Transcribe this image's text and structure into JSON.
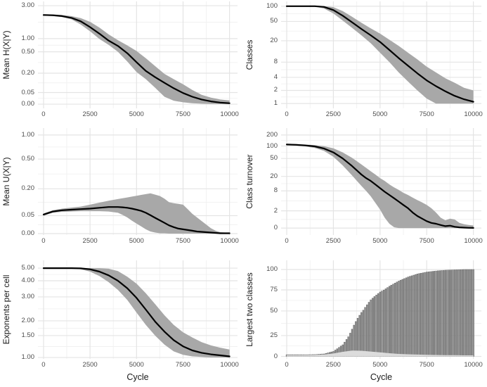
{
  "figure": {
    "background": "#ffffff",
    "grid_rows": 3,
    "grid_cols": 2
  },
  "colors": {
    "ribbon": "#a8a8a8",
    "line": "#000000",
    "grid_major": "#e4e4e4",
    "grid_minor": "#f1f1f1",
    "bar_fill": "#8f8f8f",
    "bar_stroke": "#656565",
    "second_area": "#dcdcdc",
    "tick_text": "#4d4d4d",
    "axis_title": "#1a1a1a"
  },
  "axes": {
    "x": {
      "label": "Cycle",
      "range": [
        0,
        10000
      ],
      "tick_values": [
        0,
        2500,
        5000,
        7500,
        10000
      ],
      "tick_labels": [
        "0",
        "2500",
        "5000",
        "7500",
        "10000"
      ],
      "minor_ticks": [
        1250,
        3750,
        6250,
        8750
      ],
      "frac_start": 0.028,
      "frac_end": 0.96
    }
  },
  "chart_data": [
    {
      "id": "mean-hxy",
      "type": "line+ribbon",
      "ylabel": "Mean H(X|Y)",
      "xlabel": "",
      "yscale": "pseudo-log",
      "yticks": [
        {
          "value": 3.0,
          "label": "3.00",
          "pos": 0.04
        },
        {
          "value": 1.0,
          "label": "1.00",
          "pos": 0.348
        },
        {
          "value": 0.5,
          "label": "0.50",
          "pos": 0.471
        },
        {
          "value": 0.2,
          "label": "0.20",
          "pos": 0.671
        },
        {
          "value": 0.05,
          "label": "0.05",
          "pos": 0.852
        },
        {
          "value": 0.0,
          "label": "0.00",
          "pos": 0.961
        }
      ],
      "x": [
        0,
        500,
        1000,
        1500,
        2000,
        2500,
        3000,
        3500,
        4000,
        4500,
        5000,
        5500,
        6000,
        6500,
        7000,
        7500,
        8000,
        8500,
        9000,
        9500,
        10000
      ],
      "mean": [
        2.2,
        2.18,
        2.12,
        2.0,
        1.78,
        1.47,
        1.18,
        0.9,
        0.68,
        0.47,
        0.32,
        0.22,
        0.15,
        0.1,
        0.068,
        0.048,
        0.032,
        0.02,
        0.012,
        0.007,
        0.004
      ],
      "lo": [
        2.15,
        2.12,
        2.05,
        1.9,
        1.6,
        1.28,
        0.98,
        0.72,
        0.5,
        0.33,
        0.21,
        0.13,
        0.07,
        0.032,
        0.015,
        0.008,
        0.004,
        0.002,
        0.001,
        0.0005,
        0.0003
      ],
      "hi": [
        2.25,
        2.24,
        2.2,
        2.12,
        1.98,
        1.75,
        1.45,
        1.15,
        0.92,
        0.7,
        0.52,
        0.38,
        0.27,
        0.19,
        0.13,
        0.09,
        0.06,
        0.04,
        0.028,
        0.02,
        0.016
      ]
    },
    {
      "id": "classes",
      "type": "line+ribbon",
      "ylabel": "Classes",
      "xlabel": "",
      "yscale": "log",
      "yticks": [
        {
          "value": 100,
          "label": "100",
          "pos": 0.045
        },
        {
          "value": 50,
          "label": "50",
          "pos": 0.187
        },
        {
          "value": 20,
          "label": "20",
          "pos": 0.368
        },
        {
          "value": 8,
          "label": "8",
          "pos": 0.568
        },
        {
          "value": 4,
          "label": "4",
          "pos": 0.71
        },
        {
          "value": 2,
          "label": "2",
          "pos": 0.832
        },
        {
          "value": 1,
          "label": "1",
          "pos": 0.955
        }
      ],
      "x": [
        0,
        500,
        1000,
        1500,
        2000,
        2500,
        3000,
        3500,
        4000,
        4500,
        5000,
        5500,
        6000,
        6500,
        7000,
        7500,
        8000,
        8500,
        9000,
        9500,
        10000
      ],
      "mean": [
        100,
        100,
        100,
        100,
        97,
        84,
        65,
        48,
        35,
        26,
        19,
        13.5,
        9.5,
        6.8,
        4.8,
        3.4,
        2.5,
        1.9,
        1.5,
        1.25,
        1.1
      ],
      "lo": [
        100,
        100,
        100,
        99,
        90,
        72,
        52,
        37,
        26,
        18,
        12,
        8,
        5,
        3.2,
        2,
        1.3,
        1,
        1,
        1,
        1,
        1
      ],
      "hi": [
        100,
        100,
        100,
        100,
        100,
        96,
        80,
        62,
        47,
        36,
        28,
        21,
        16,
        12,
        9,
        6.5,
        5,
        3.8,
        3,
        2.3,
        2
      ]
    },
    {
      "id": "mean-uxy",
      "type": "line+ribbon",
      "ylabel": "Mean U(X|Y)",
      "xlabel": "",
      "yscale": "pseudo-log",
      "yticks": [
        {
          "value": 1.0,
          "label": "1.00",
          "pos": 0.065
        },
        {
          "value": 0.5,
          "label": "0.50",
          "pos": 0.29
        },
        {
          "value": 0.2,
          "label": "0.20",
          "pos": 0.568
        },
        {
          "value": 0.05,
          "label": "0.05",
          "pos": 0.819
        },
        {
          "value": 0.0,
          "label": "0.00",
          "pos": 0.987
        }
      ],
      "x": [
        0,
        500,
        1000,
        1500,
        2000,
        2500,
        3000,
        3500,
        4000,
        4250,
        4500,
        4750,
        5000,
        5250,
        5500,
        5750,
        6000,
        6250,
        6500,
        6750,
        7000,
        7250,
        7500,
        7750,
        8000,
        8250,
        8500,
        8750,
        9000,
        9250,
        9500,
        9750,
        10000
      ],
      "mean": [
        0.053,
        0.062,
        0.066,
        0.068,
        0.07,
        0.072,
        0.075,
        0.078,
        0.078,
        0.077,
        0.075,
        0.072,
        0.068,
        0.064,
        0.058,
        0.051,
        0.044,
        0.037,
        0.03,
        0.023,
        0.018,
        0.014,
        0.012,
        0.01,
        0.008,
        0.006,
        0.005,
        0.004,
        0.003,
        0.002,
        0.001,
        0.001,
        0.001
      ],
      "lo": [
        0.05,
        0.058,
        0.061,
        0.062,
        0.063,
        0.063,
        0.063,
        0.062,
        0.058,
        0.052,
        0.045,
        0.036,
        0.028,
        0.02,
        0.012,
        0.006,
        0.003,
        0.001,
        0.001,
        0,
        0,
        0,
        0,
        0,
        0,
        0,
        0,
        0,
        0,
        0,
        0,
        0,
        0
      ],
      "hi": [
        0.056,
        0.066,
        0.072,
        0.076,
        0.08,
        0.088,
        0.098,
        0.108,
        0.118,
        0.123,
        0.128,
        0.134,
        0.14,
        0.146,
        0.152,
        0.158,
        0.148,
        0.138,
        0.12,
        0.1,
        0.095,
        0.092,
        0.088,
        0.07,
        0.055,
        0.045,
        0.035,
        0.025,
        0.015,
        0.008,
        0.004,
        0.003,
        0.002
      ]
    },
    {
      "id": "class-turnover",
      "type": "line+ribbon",
      "ylabel": "Class turnover",
      "xlabel": "",
      "yscale": "pseudo-log",
      "yticks": [
        {
          "value": 200,
          "label": "200",
          "pos": 0.065
        },
        {
          "value": 100,
          "label": "100",
          "pos": 0.168
        },
        {
          "value": 50,
          "label": "50",
          "pos": 0.284
        },
        {
          "value": 20,
          "label": "20",
          "pos": 0.452
        },
        {
          "value": 8,
          "label": "8",
          "pos": 0.587
        },
        {
          "value": 2,
          "label": "2",
          "pos": 0.774
        },
        {
          "value": 0,
          "label": "0",
          "pos": 0.935
        }
      ],
      "x": [
        0,
        500,
        1000,
        1500,
        2000,
        2500,
        3000,
        3500,
        4000,
        4250,
        4500,
        4750,
        5000,
        5250,
        5500,
        5750,
        6000,
        6250,
        6500,
        6750,
        7000,
        7250,
        7500,
        7750,
        8000,
        8250,
        8500,
        8750,
        9000,
        9250,
        9500,
        9750,
        10000
      ],
      "mean": [
        110,
        108,
        104,
        98,
        87,
        70,
        50,
        34,
        22,
        18,
        15,
        12,
        9.5,
        7.5,
        6,
        4.8,
        3.8,
        3.0,
        2.4,
        1.8,
        1.4,
        1.1,
        0.8,
        0.6,
        0.5,
        0.35,
        0.22,
        0.28,
        0.15,
        0.08,
        0.05,
        0.03,
        0.02
      ],
      "lo": [
        105,
        103,
        98,
        90,
        76,
        55,
        35,
        21,
        11,
        8,
        5.5,
        3.5,
        2.2,
        1.2,
        0.5,
        0.1,
        0,
        0,
        0,
        0,
        0,
        0,
        0,
        0,
        0,
        0,
        0,
        0,
        0,
        0,
        0,
        0,
        0
      ],
      "hi": [
        116,
        114,
        110,
        106,
        99,
        88,
        70,
        52,
        37,
        31,
        26,
        22,
        18,
        15,
        12,
        10,
        8.5,
        7,
        6,
        5,
        4.2,
        3.6,
        3.0,
        2.4,
        1.8,
        1.2,
        0.9,
        1.1,
        1.0,
        0.6,
        0.45,
        0.35,
        0.3
      ]
    },
    {
      "id": "exponents-per-cell",
      "type": "line+ribbon",
      "ylabel": "Exponents per cell",
      "xlabel": "Cycle",
      "yscale": "log",
      "yticks": [
        {
          "value": 5.0,
          "label": "5.00",
          "pos": 0.079
        },
        {
          "value": 4.0,
          "label": "4.00",
          "pos": 0.207
        },
        {
          "value": 3.0,
          "label": "3.00",
          "pos": 0.371
        },
        {
          "value": 2.0,
          "label": "2.00",
          "pos": 0.614
        },
        {
          "value": 1.5,
          "label": "1.50",
          "pos": 0.764
        },
        {
          "value": 1.0,
          "label": "1.00",
          "pos": 0.986
        }
      ],
      "x": [
        0,
        500,
        1000,
        1500,
        2000,
        2500,
        3000,
        3500,
        4000,
        4500,
        5000,
        5500,
        6000,
        6500,
        7000,
        7500,
        8000,
        8500,
        9000,
        9500,
        10000
      ],
      "mean": [
        5,
        5,
        5,
        5,
        4.98,
        4.9,
        4.7,
        4.4,
        4.0,
        3.5,
        2.95,
        2.42,
        1.97,
        1.62,
        1.38,
        1.23,
        1.14,
        1.09,
        1.06,
        1.04,
        1.02
      ],
      "lo": [
        5,
        5,
        5,
        5,
        4.9,
        4.7,
        4.35,
        3.9,
        3.4,
        2.85,
        2.3,
        1.85,
        1.5,
        1.27,
        1.12,
        1.05,
        1.02,
        1.01,
        1.0,
        1.0,
        1.0
      ],
      "hi": [
        5,
        5,
        5,
        5,
        5,
        5,
        5,
        4.95,
        4.75,
        4.3,
        3.8,
        3.2,
        2.65,
        2.2,
        1.85,
        1.6,
        1.45,
        1.33,
        1.25,
        1.2,
        1.16
      ]
    },
    {
      "id": "largest-two-classes",
      "type": "bars+area",
      "ylabel": "Largest two classes",
      "xlabel": "Cycle",
      "yscale": "linear",
      "bar_step": 100,
      "yticks": [
        {
          "value": 100,
          "label": "100",
          "pos": 0.093
        },
        {
          "value": 75,
          "label": "75",
          "pos": 0.3
        },
        {
          "value": 50,
          "label": "50",
          "pos": 0.514
        },
        {
          "value": 25,
          "label": "25",
          "pos": 0.764
        },
        {
          "value": 0,
          "label": "0",
          "pos": 0.975
        }
      ],
      "x": [
        0,
        500,
        1000,
        1500,
        2000,
        2500,
        3000,
        3500,
        4000,
        4500,
        5000,
        5500,
        6000,
        6500,
        7000,
        7500,
        8000,
        8500,
        9000,
        9500,
        10000
      ],
      "largest": [
        2,
        2,
        2,
        2.2,
        3,
        6,
        14,
        30,
        48,
        62,
        72,
        79,
        85,
        90,
        94,
        96.5,
        98,
        99,
        99.5,
        100,
        100
      ],
      "second": [
        1.5,
        1.5,
        1.6,
        1.8,
        2.2,
        3.5,
        5.5,
        7,
        6.8,
        5.8,
        4.8,
        3.8,
        3.0,
        2.5,
        2.2,
        1.9,
        1.7,
        1.5,
        1.4,
        1.3,
        1.3
      ]
    }
  ]
}
